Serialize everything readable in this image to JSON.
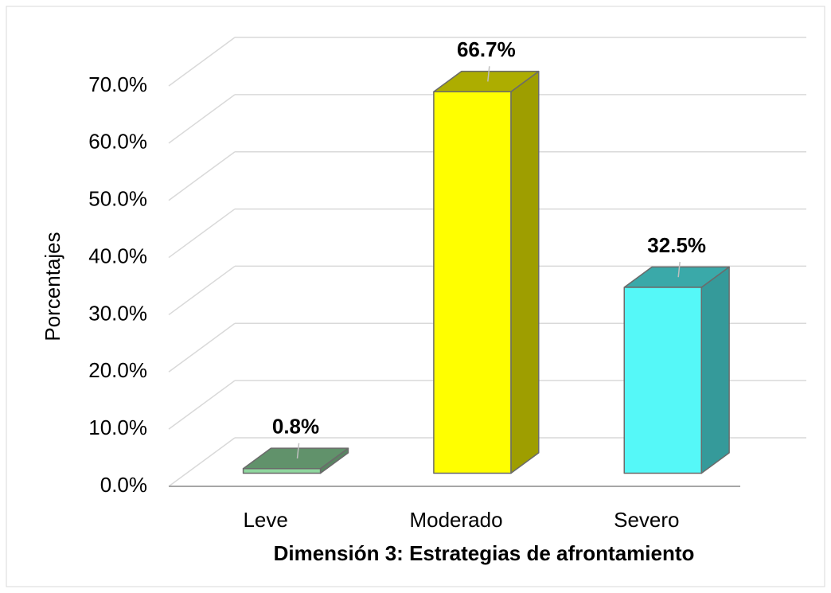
{
  "chart_data": {
    "type": "bar3d",
    "x_label": "Dimensión 3: Estrategias de afrontamiento",
    "y_label": "Porcentajes",
    "categories": [
      "Leve",
      "Moderado",
      "Severo"
    ],
    "values": [
      0.8,
      66.7,
      32.5
    ],
    "value_labels": [
      "0.8%",
      "66.7%",
      "32.5%"
    ],
    "colors": [
      "#8fd69e",
      "#ffff00",
      "#55f8f8"
    ],
    "ylim": [
      0,
      70
    ],
    "yticks": [
      {
        "value": 0,
        "label": "0.0%"
      },
      {
        "value": 10,
        "label": "10.0%"
      },
      {
        "value": 20,
        "label": "20.0%"
      },
      {
        "value": 30,
        "label": "30.0%"
      },
      {
        "value": 40,
        "label": "40.0%"
      },
      {
        "value": 50,
        "label": "50.0%"
      },
      {
        "value": 60,
        "label": "60.0%"
      },
      {
        "value": 70,
        "label": "70.0%"
      }
    ],
    "grid": true
  }
}
